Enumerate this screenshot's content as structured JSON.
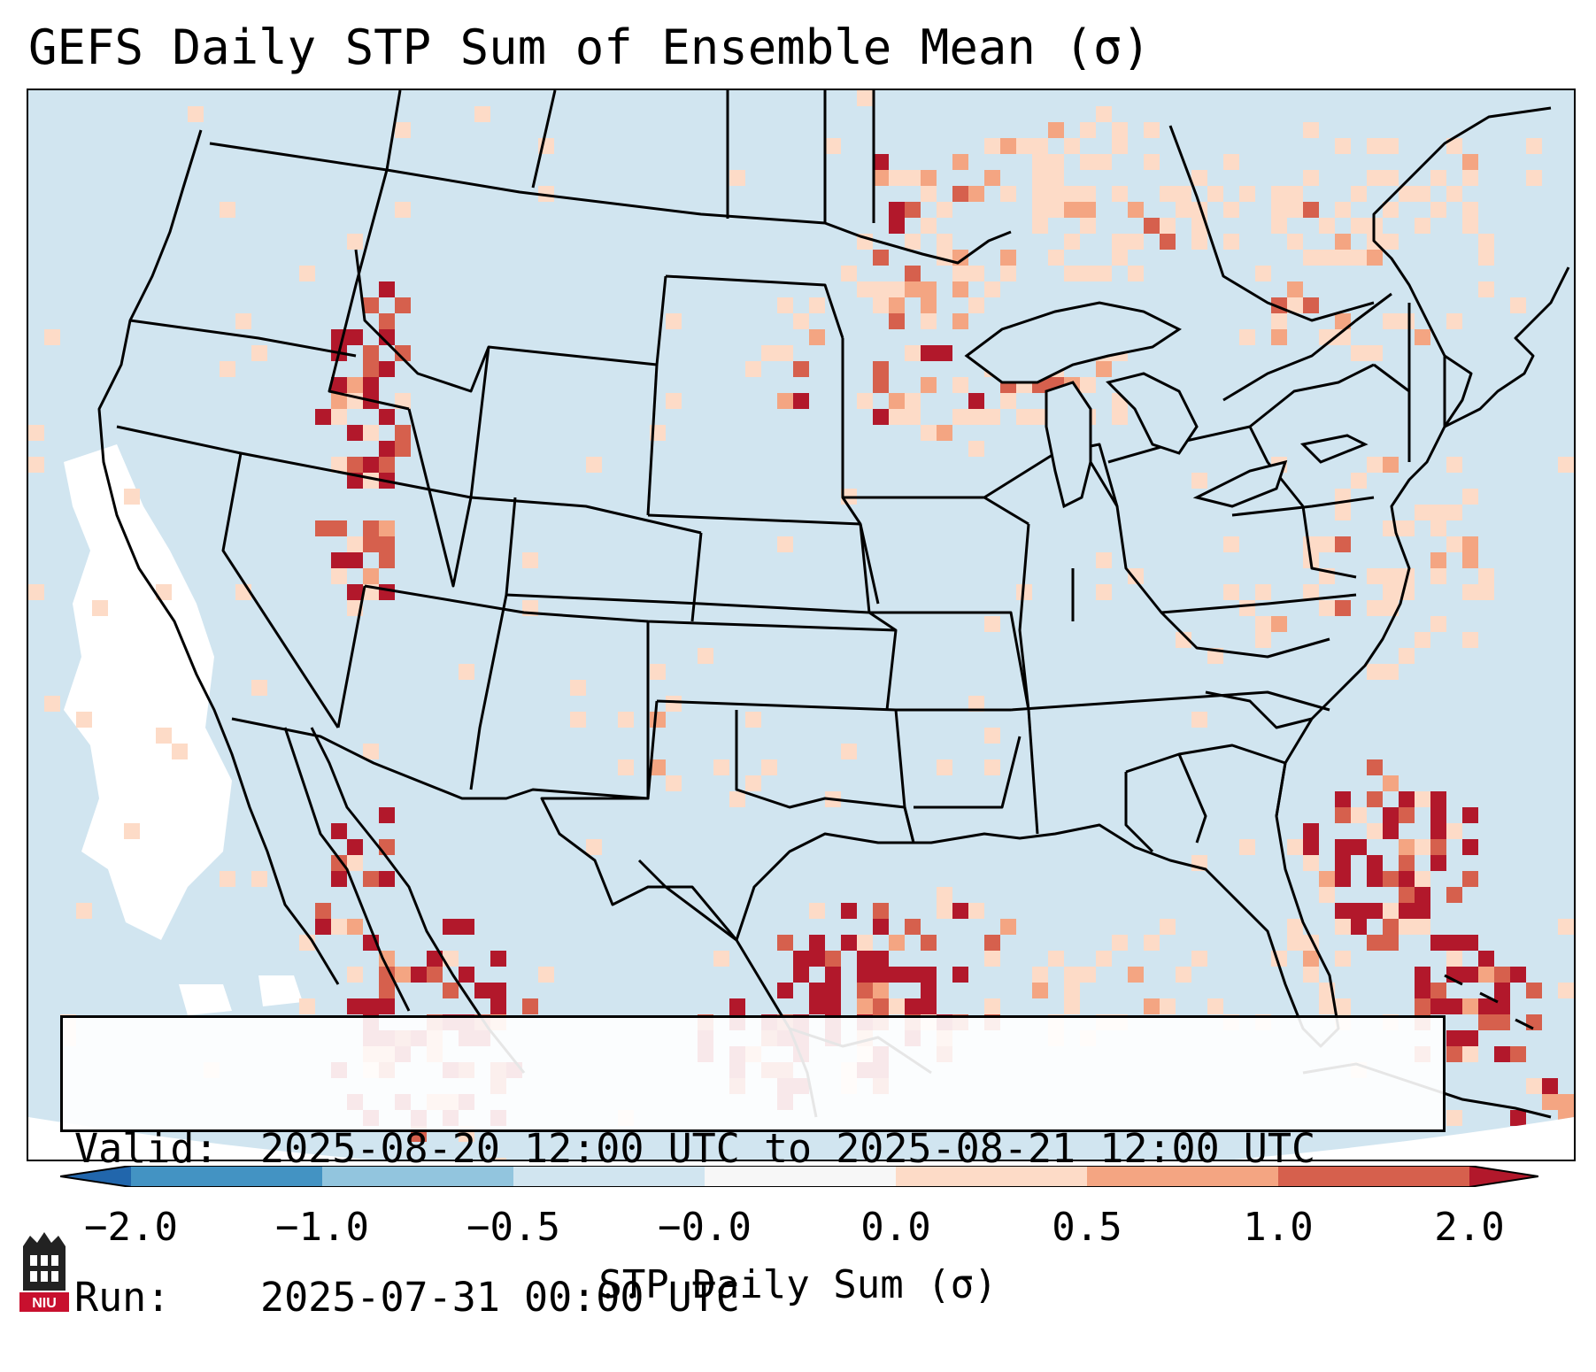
{
  "title": "GEFS Daily STP Sum of Ensemble Mean (σ)",
  "valid_label": "Valid:",
  "valid_value": "2025-08-20 12:00 UTC to 2025-08-21 12:00 UTC",
  "run_label": "Run:",
  "run_value": "2025-07-31 00:00 UTC",
  "colorbar": {
    "label": "STP Daily Sum (σ)",
    "ticks": [
      "−2.0",
      "−1.0",
      "−0.5",
      "−0.0",
      "0.0",
      "0.5",
      "1.0",
      "2.0"
    ],
    "colors": [
      "#4393c3",
      "#92c5de",
      "#d1e5f0",
      "#f7f7f7",
      "#fddbc7",
      "#f4a582",
      "#d6604d"
    ],
    "under_color": "#2166ac",
    "over_color": "#b2182b"
  },
  "map": {
    "projection": "Lambert Conformal (CONUS)",
    "background_value_color": "#d1e5f0",
    "outside_domain_color": "#ffffff",
    "border_color": "#000000"
  },
  "logo": {
    "text": "NIU",
    "color": "#c8102e"
  }
}
